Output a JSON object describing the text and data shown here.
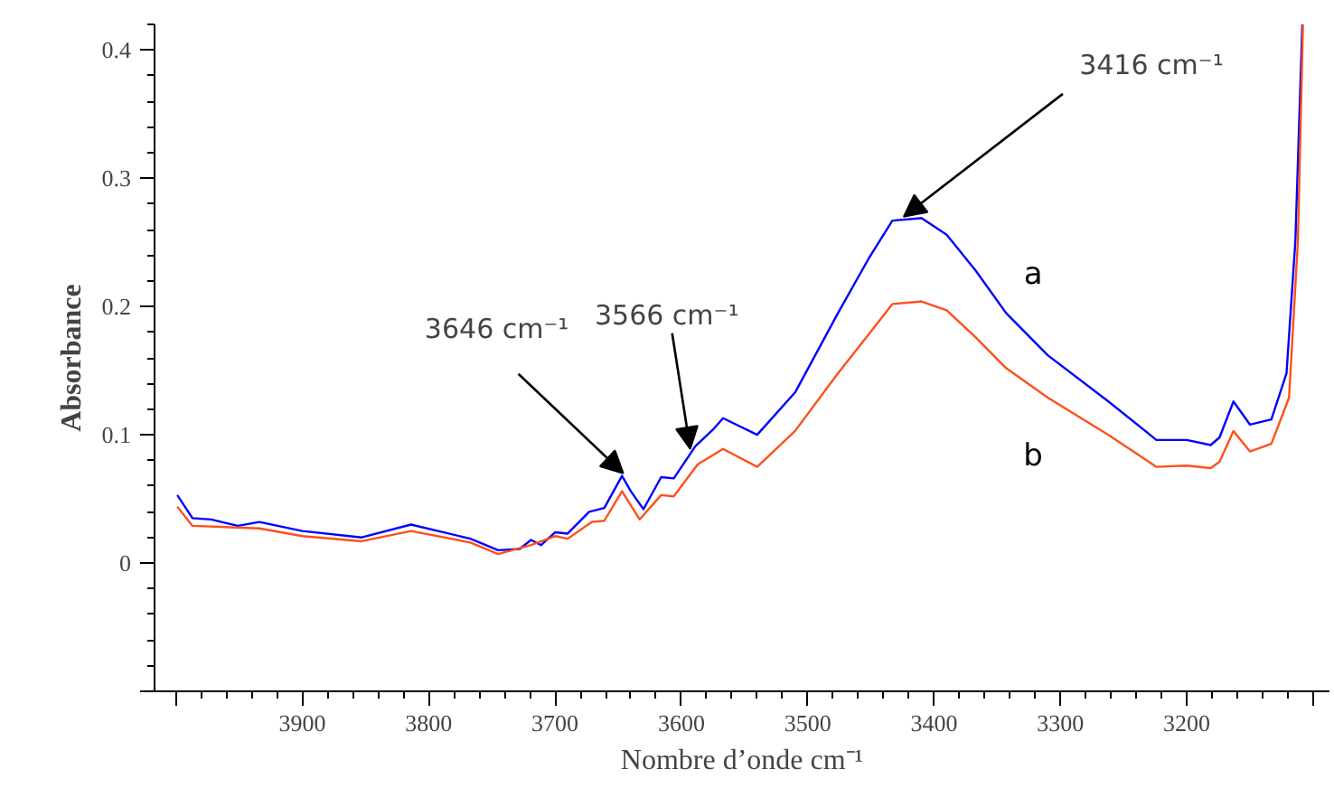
{
  "chart_data": {
    "type": "line",
    "xlabel": "Nombre d’onde cm⁻¹",
    "ylabel": "Absorbance",
    "xlim": [
      4017,
      3087
    ],
    "ylim": [
      -0.1,
      0.42
    ],
    "xticks": [
      {
        "value": 4000,
        "label": null
      },
      3900,
      3800,
      3700,
      3600,
      3500,
      3400,
      3300,
      3200,
      {
        "value": 3100,
        "label": null
      }
    ],
    "yticks": [
      {
        "value": -0.1,
        "label": null
      },
      0,
      0.1,
      0.2,
      0.3,
      0.4
    ],
    "grid": false,
    "marker": "none",
    "line_style": "solid",
    "series": [
      {
        "name": "a",
        "color": "#0000ff",
        "x": [
          3999,
          3987,
          3972,
          3951,
          3934,
          3900,
          3853,
          3814,
          3767,
          3745,
          3728,
          3719,
          3711,
          3700,
          3690,
          3673,
          3661,
          3647,
          3640,
          3630,
          3616,
          3606,
          3589,
          3575,
          3567,
          3540,
          3510,
          3476,
          3452,
          3433,
          3410,
          3390,
          3367,
          3343,
          3310,
          3262,
          3224,
          3200,
          3181,
          3174,
          3163,
          3150,
          3133,
          3121,
          3114,
          3108.5
        ],
        "values": [
          0.053,
          0.035,
          0.034,
          0.029,
          0.032,
          0.025,
          0.02,
          0.03,
          0.019,
          0.01,
          0.011,
          0.018,
          0.014,
          0.024,
          0.023,
          0.04,
          0.043,
          0.068,
          0.056,
          0.042,
          0.067,
          0.066,
          0.091,
          0.104,
          0.113,
          0.1,
          0.133,
          0.195,
          0.237,
          0.267,
          0.269,
          0.256,
          0.228,
          0.195,
          0.162,
          0.126,
          0.096,
          0.096,
          0.092,
          0.098,
          0.126,
          0.108,
          0.112,
          0.148,
          0.251,
          0.42
        ]
      },
      {
        "name": "b",
        "color": "#ff4f1a",
        "x": [
          3999,
          3987,
          3934,
          3900,
          3853,
          3814,
          3767,
          3745,
          3719,
          3700,
          3690,
          3671,
          3661,
          3647,
          3633,
          3616,
          3606,
          3587,
          3567,
          3540,
          3510,
          3476,
          3452,
          3433,
          3410,
          3390,
          3367,
          3343,
          3310,
          3262,
          3224,
          3200,
          3181,
          3174,
          3163,
          3150,
          3133,
          3119,
          3112,
          3108
        ],
        "values": [
          0.044,
          0.029,
          0.027,
          0.021,
          0.017,
          0.025,
          0.016,
          0.007,
          0.014,
          0.021,
          0.019,
          0.032,
          0.033,
          0.056,
          0.034,
          0.053,
          0.052,
          0.077,
          0.089,
          0.075,
          0.103,
          0.148,
          0.178,
          0.202,
          0.204,
          0.197,
          0.176,
          0.152,
          0.129,
          0.1,
          0.075,
          0.076,
          0.074,
          0.079,
          0.103,
          0.087,
          0.093,
          0.129,
          0.251,
          0.42
        ]
      }
    ],
    "annotations": [
      {
        "text": "3646 cm⁻¹",
        "x": 3646,
        "y": 0.07
      },
      {
        "text": "3566 cm⁻¹",
        "x": 3593,
        "y": 0.089
      },
      {
        "text": "3416 cm⁻¹",
        "x": 3424,
        "y": 0.27
      }
    ]
  }
}
